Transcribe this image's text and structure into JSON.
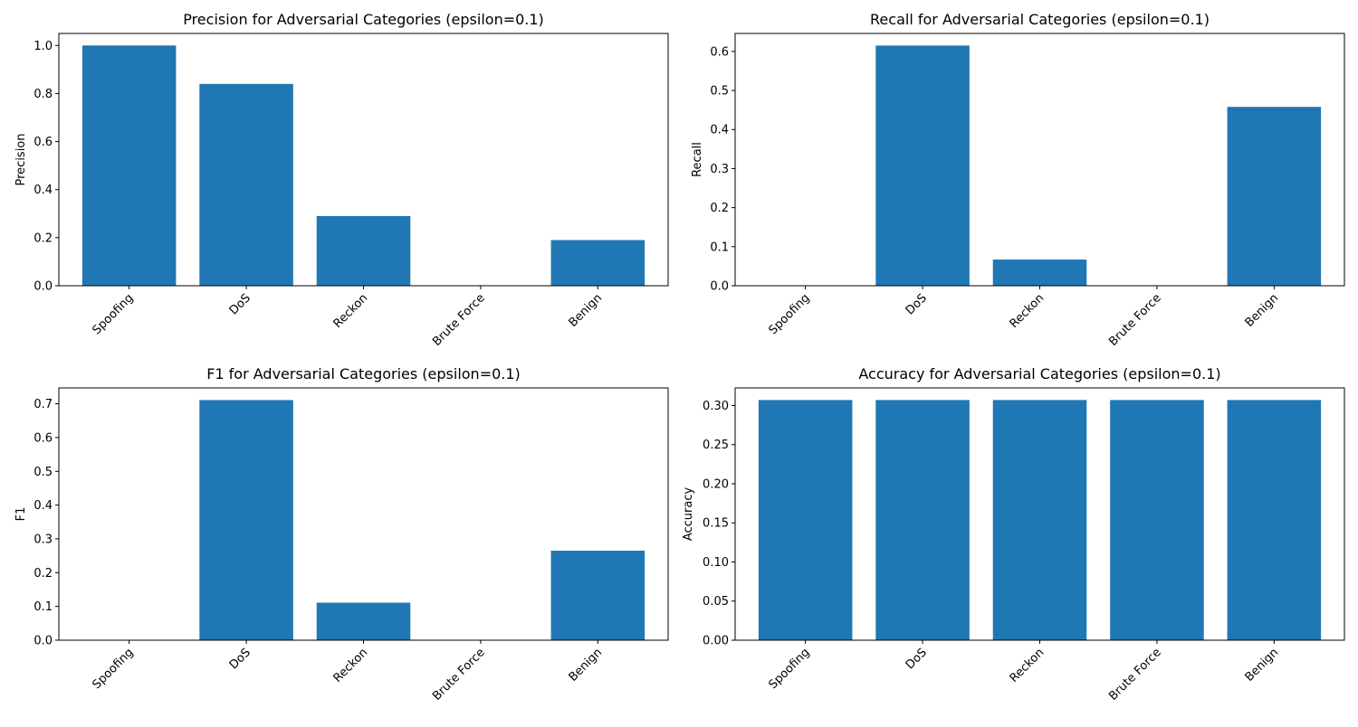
{
  "chart_data": [
    {
      "type": "bar",
      "title": "Precision for Adversarial Categories (epsilon=0.1)",
      "xlabel": "",
      "ylabel": "Precision",
      "categories": [
        "Spoofing",
        "DoS",
        "Reckon",
        "Brute Force",
        "Benign"
      ],
      "values": [
        1.0,
        0.84,
        0.29,
        0.0,
        0.19
      ],
      "ylim": [
        0,
        1.05
      ],
      "yticks": [
        "0.0",
        "0.2",
        "0.4",
        "0.6",
        "0.8",
        "1.0"
      ],
      "grid": false
    },
    {
      "type": "bar",
      "title": "Recall for Adversarial Categories (epsilon=0.1)",
      "xlabel": "",
      "ylabel": "Recall",
      "categories": [
        "Spoofing",
        "DoS",
        "Reckon",
        "Brute Force",
        "Benign"
      ],
      "values": [
        0.0,
        0.615,
        0.067,
        0.0,
        0.458
      ],
      "ylim": [
        0,
        0.646
      ],
      "yticks": [
        "0.0",
        "0.1",
        "0.2",
        "0.3",
        "0.4",
        "0.5",
        "0.6"
      ],
      "grid": false
    },
    {
      "type": "bar",
      "title": "F1 for Adversarial Categories (epsilon=0.1)",
      "xlabel": "",
      "ylabel": "F1",
      "categories": [
        "Spoofing",
        "DoS",
        "Reckon",
        "Brute Force",
        "Benign"
      ],
      "values": [
        0.0,
        0.711,
        0.111,
        0.0,
        0.265
      ],
      "ylim": [
        0,
        0.747
      ],
      "yticks": [
        "0.0",
        "0.1",
        "0.2",
        "0.3",
        "0.4",
        "0.5",
        "0.6",
        "0.7"
      ],
      "grid": false
    },
    {
      "type": "bar",
      "title": "Accuracy for Adversarial Categories (epsilon=0.1)",
      "xlabel": "",
      "ylabel": "Accuracy",
      "categories": [
        "Spoofing",
        "DoS",
        "Reckon",
        "Brute Force",
        "Benign"
      ],
      "values": [
        0.307,
        0.307,
        0.307,
        0.307,
        0.307
      ],
      "ylim": [
        0,
        0.3225
      ],
      "yticks": [
        "0.00",
        "0.05",
        "0.10",
        "0.15",
        "0.20",
        "0.25",
        "0.30"
      ],
      "grid": false
    }
  ],
  "colors": {
    "bar": "#1f77b4",
    "axis": "#000000",
    "background": "#ffffff"
  }
}
